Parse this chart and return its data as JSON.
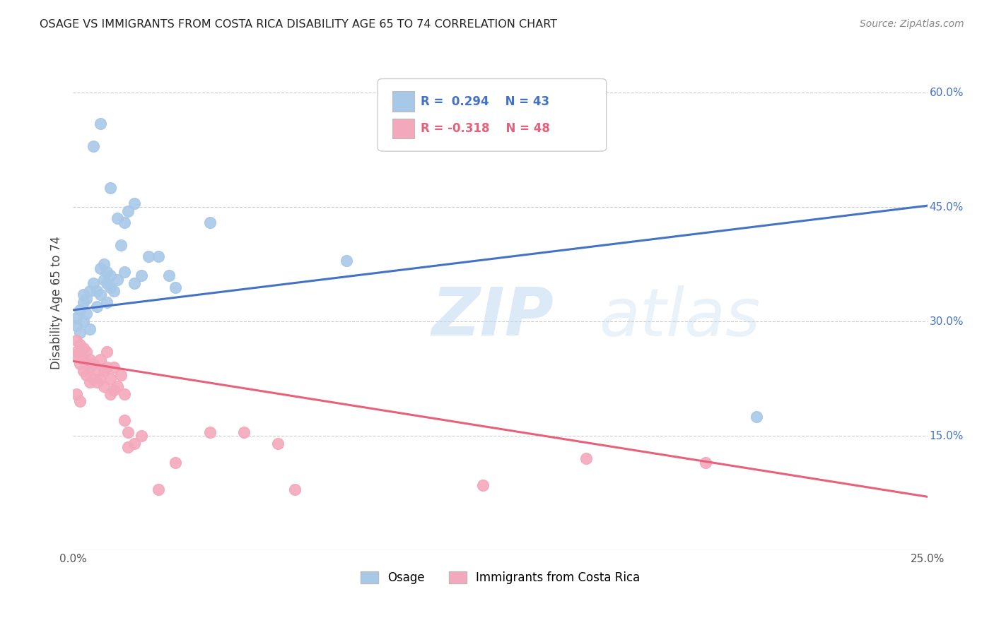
{
  "title": "OSAGE VS IMMIGRANTS FROM COSTA RICA DISABILITY AGE 65 TO 74 CORRELATION CHART",
  "source": "Source: ZipAtlas.com",
  "ylabel": "Disability Age 65 to 74",
  "xlim": [
    0.0,
    0.25
  ],
  "ylim": [
    0.0,
    0.65
  ],
  "r_osage": 0.294,
  "n_osage": 43,
  "r_immigrants": -0.318,
  "n_immigrants": 48,
  "color_osage": "#a8c8e8",
  "color_immigrants": "#f4a8bc",
  "line_color_osage": "#4472c4",
  "line_color_immigrants": "#e8607a",
  "watermark_zip": "ZIP",
  "watermark_atlas": "atlas",
  "background_color": "#ffffff",
  "grid_color": "#cccccc",
  "osage_points": [
    [
      0.001,
      0.295
    ],
    [
      0.001,
      0.305
    ],
    [
      0.002,
      0.285
    ],
    [
      0.002,
      0.315
    ],
    [
      0.003,
      0.3
    ],
    [
      0.003,
      0.325
    ],
    [
      0.003,
      0.335
    ],
    [
      0.004,
      0.31
    ],
    [
      0.004,
      0.33
    ],
    [
      0.005,
      0.29
    ],
    [
      0.005,
      0.34
    ],
    [
      0.006,
      0.35
    ],
    [
      0.007,
      0.32
    ],
    [
      0.007,
      0.34
    ],
    [
      0.008,
      0.335
    ],
    [
      0.008,
      0.37
    ],
    [
      0.009,
      0.355
    ],
    [
      0.009,
      0.375
    ],
    [
      0.01,
      0.325
    ],
    [
      0.01,
      0.35
    ],
    [
      0.01,
      0.365
    ],
    [
      0.011,
      0.345
    ],
    [
      0.011,
      0.36
    ],
    [
      0.012,
      0.34
    ],
    [
      0.013,
      0.355
    ],
    [
      0.014,
      0.4
    ],
    [
      0.015,
      0.365
    ],
    [
      0.015,
      0.43
    ],
    [
      0.016,
      0.445
    ],
    [
      0.018,
      0.35
    ],
    [
      0.02,
      0.36
    ],
    [
      0.022,
      0.385
    ],
    [
      0.025,
      0.385
    ],
    [
      0.028,
      0.36
    ],
    [
      0.03,
      0.345
    ],
    [
      0.006,
      0.53
    ],
    [
      0.008,
      0.56
    ],
    [
      0.011,
      0.475
    ],
    [
      0.013,
      0.435
    ],
    [
      0.018,
      0.455
    ],
    [
      0.04,
      0.43
    ],
    [
      0.08,
      0.38
    ],
    [
      0.2,
      0.175
    ]
  ],
  "immigrants_points": [
    [
      0.001,
      0.255
    ],
    [
      0.001,
      0.26
    ],
    [
      0.001,
      0.275
    ],
    [
      0.002,
      0.245
    ],
    [
      0.002,
      0.26
    ],
    [
      0.002,
      0.27
    ],
    [
      0.003,
      0.235
    ],
    [
      0.003,
      0.25
    ],
    [
      0.003,
      0.265
    ],
    [
      0.004,
      0.23
    ],
    [
      0.004,
      0.245
    ],
    [
      0.004,
      0.26
    ],
    [
      0.005,
      0.22
    ],
    [
      0.005,
      0.24
    ],
    [
      0.005,
      0.25
    ],
    [
      0.006,
      0.225
    ],
    [
      0.006,
      0.245
    ],
    [
      0.007,
      0.22
    ],
    [
      0.007,
      0.235
    ],
    [
      0.008,
      0.225
    ],
    [
      0.008,
      0.25
    ],
    [
      0.009,
      0.215
    ],
    [
      0.009,
      0.235
    ],
    [
      0.01,
      0.24
    ],
    [
      0.01,
      0.26
    ],
    [
      0.011,
      0.205
    ],
    [
      0.011,
      0.225
    ],
    [
      0.012,
      0.21
    ],
    [
      0.012,
      0.24
    ],
    [
      0.013,
      0.215
    ],
    [
      0.014,
      0.23
    ],
    [
      0.015,
      0.17
    ],
    [
      0.015,
      0.205
    ],
    [
      0.016,
      0.135
    ],
    [
      0.016,
      0.155
    ],
    [
      0.018,
      0.14
    ],
    [
      0.02,
      0.15
    ],
    [
      0.025,
      0.08
    ],
    [
      0.001,
      0.205
    ],
    [
      0.002,
      0.195
    ],
    [
      0.04,
      0.155
    ],
    [
      0.05,
      0.155
    ],
    [
      0.03,
      0.115
    ],
    [
      0.06,
      0.14
    ],
    [
      0.12,
      0.085
    ],
    [
      0.15,
      0.12
    ],
    [
      0.185,
      0.115
    ],
    [
      0.065,
      0.08
    ]
  ],
  "blue_line": [
    [
      0.0,
      0.315
    ],
    [
      0.25,
      0.452
    ]
  ],
  "pink_line": [
    [
      0.0,
      0.248
    ],
    [
      0.25,
      0.07
    ]
  ]
}
